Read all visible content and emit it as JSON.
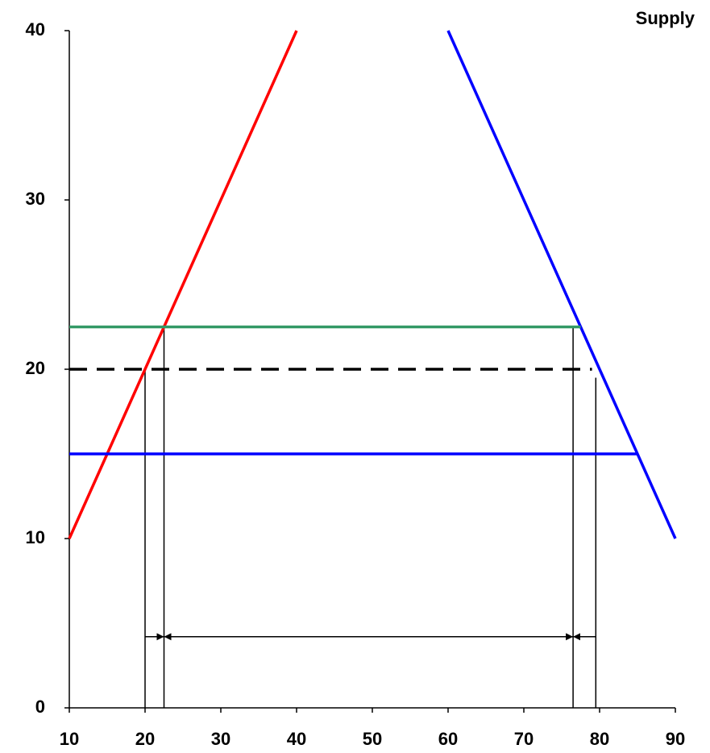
{
  "chart_data": {
    "type": "line",
    "xlim": [
      10,
      90
    ],
    "ylim": [
      0,
      40
    ],
    "xticks": [
      10,
      20,
      30,
      40,
      50,
      60,
      70,
      80,
      90
    ],
    "yticks": [
      0,
      10,
      20,
      30,
      40
    ],
    "grid": false,
    "series": [
      {
        "name": "Supply",
        "color": "#ff0000",
        "x": [
          10,
          40
        ],
        "values": [
          10,
          40
        ]
      },
      {
        "color": "#0000ff",
        "x": [
          60,
          90
        ],
        "values": [
          40,
          10
        ]
      },
      {
        "color": "#339966",
        "x": [
          10,
          77.5
        ],
        "values": [
          22.5,
          22.5
        ]
      },
      {
        "color": "#000000",
        "dash": true,
        "x": [
          10,
          79
        ],
        "values": [
          20,
          20
        ]
      },
      {
        "color": "#0000ff",
        "x": [
          10,
          85
        ],
        "values": [
          15,
          15
        ]
      }
    ],
    "vlines": [
      {
        "x": 20,
        "top": 20
      },
      {
        "x": 22.5,
        "top": 22.5
      },
      {
        "x": 76.5,
        "top": 22.5
      },
      {
        "x": 79.5,
        "top": 19.5
      }
    ],
    "arrows": [
      {
        "x": [
          20,
          22.5
        ],
        "y": 4.2,
        "heads": "end"
      },
      {
        "x": [
          22.5,
          76.5
        ],
        "y": 4.2,
        "heads": "both"
      },
      {
        "x": [
          76.5,
          79.5
        ],
        "y": 4.2,
        "heads": "start"
      }
    ]
  }
}
